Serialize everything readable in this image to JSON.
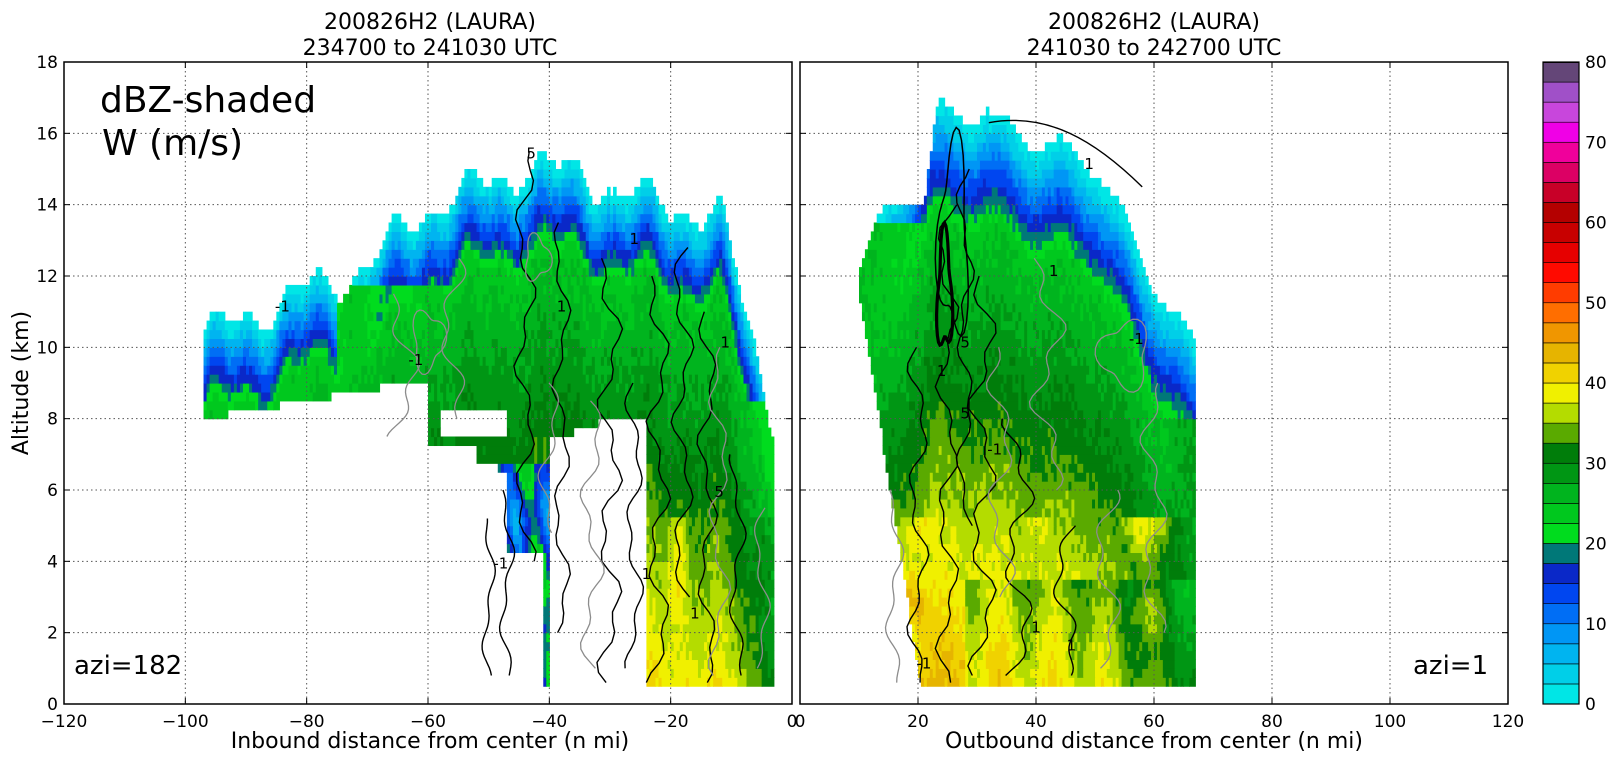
{
  "colors": {
    "positive_contour": "#000000",
    "negative_contour": "#8c8c8c",
    "frame": "#000000",
    "grid": "#555555"
  },
  "chart_data": [
    {
      "type": "heatmap",
      "title_line1": "200826H2 (LAURA)",
      "title_line2": "234700 to 241030 UTC",
      "xlabel": "Inbound distance from center (n mi)",
      "ylabel": "Altitude (km)",
      "xlim": [
        -120,
        0
      ],
      "ylim": [
        0,
        18
      ],
      "xticks": [
        -120,
        -100,
        -80,
        -60,
        -40,
        -20,
        0
      ],
      "yticks": [
        0,
        2,
        4,
        6,
        8,
        10,
        12,
        14,
        16,
        18
      ],
      "grid": true,
      "annotation_main_line1": "dBZ-shaded",
      "annotation_main_line2": "W (m/s)",
      "annotation_azimuth": "azi=182",
      "contour_labels": [
        "1",
        "1",
        "1",
        "1",
        "1",
        "-1",
        "-1",
        "-1",
        "5",
        "5"
      ]
    },
    {
      "type": "heatmap",
      "title_line1": "200826H2 (LAURA)",
      "title_line2": "241030 to 242700 UTC",
      "xlabel": "Outbound distance from center (n mi)",
      "xlim": [
        0,
        120
      ],
      "ylim": [
        0,
        18
      ],
      "xticks": [
        0,
        20,
        40,
        60,
        80,
        100,
        120
      ],
      "grid": true,
      "annotation_azimuth": "azi=1",
      "contour_labels": [
        "-1",
        "1",
        "1",
        "1",
        "5",
        "5",
        "-1",
        "1",
        "-1",
        "1"
      ]
    }
  ],
  "colorbar": {
    "min": 0,
    "max": 80,
    "ticks": [
      0,
      10,
      20,
      30,
      40,
      50,
      60,
      70,
      80
    ],
    "bins": [
      {
        "from": 0,
        "to": 2.5,
        "color": "#00e6e6"
      },
      {
        "from": 2.5,
        "to": 5,
        "color": "#00cfe8"
      },
      {
        "from": 5,
        "to": 7.5,
        "color": "#00b4f0"
      },
      {
        "from": 7.5,
        "to": 10,
        "color": "#0096f5"
      },
      {
        "from": 10,
        "to": 12.5,
        "color": "#006ef5"
      },
      {
        "from": 12.5,
        "to": 15,
        "color": "#0046f0"
      },
      {
        "from": 15,
        "to": 17.5,
        "color": "#0a28c8"
      },
      {
        "from": 17.5,
        "to": 20,
        "color": "#007878"
      },
      {
        "from": 20,
        "to": 22.5,
        "color": "#00dc1e"
      },
      {
        "from": 22.5,
        "to": 25,
        "color": "#00c81e"
      },
      {
        "from": 25,
        "to": 27.5,
        "color": "#00b41e"
      },
      {
        "from": 27.5,
        "to": 30,
        "color": "#009614"
      },
      {
        "from": 30,
        "to": 32.5,
        "color": "#007d0a"
      },
      {
        "from": 32.5,
        "to": 35,
        "color": "#5aaa00"
      },
      {
        "from": 35,
        "to": 37.5,
        "color": "#b4dc00"
      },
      {
        "from": 37.5,
        "to": 40,
        "color": "#f0f000"
      },
      {
        "from": 40,
        "to": 42.5,
        "color": "#f0d200"
      },
      {
        "from": 42.5,
        "to": 45,
        "color": "#e6b400"
      },
      {
        "from": 45,
        "to": 47.5,
        "color": "#f09600"
      },
      {
        "from": 47.5,
        "to": 50,
        "color": "#ff6e00"
      },
      {
        "from": 50,
        "to": 52.5,
        "color": "#ff3c00"
      },
      {
        "from": 52.5,
        "to": 55,
        "color": "#ff0a00"
      },
      {
        "from": 55,
        "to": 57.5,
        "color": "#e60000"
      },
      {
        "from": 57.5,
        "to": 60,
        "color": "#c80000"
      },
      {
        "from": 60,
        "to": 62.5,
        "color": "#b40000"
      },
      {
        "from": 62.5,
        "to": 65,
        "color": "#c80028"
      },
      {
        "from": 65,
        "to": 67.5,
        "color": "#dc0064"
      },
      {
        "from": 67.5,
        "to": 70,
        "color": "#f0009b"
      },
      {
        "from": 70,
        "to": 72.5,
        "color": "#f000e6"
      },
      {
        "from": 72.5,
        "to": 75,
        "color": "#c846dc"
      },
      {
        "from": 75,
        "to": 77.5,
        "color": "#a050c8"
      },
      {
        "from": 77.5,
        "to": 80,
        "color": "#644678"
      }
    ],
    "overflow_color": "#000000"
  }
}
